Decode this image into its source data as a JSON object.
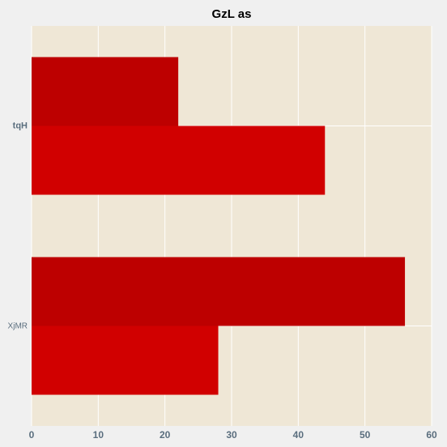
{
  "chart_data": {
    "type": "bar",
    "orientation": "horizontal",
    "title": "GzL as",
    "xlabel": "",
    "ylabel": "",
    "categories": [
      "XjMR",
      "tqH"
    ],
    "series": [
      {
        "values": [
          56,
          22
        ],
        "color": "#bd0000"
      },
      {
        "values": [
          28,
          44
        ],
        "color": "#d10000"
      }
    ],
    "xlim": [
      0,
      60
    ],
    "xticks": [
      0,
      10,
      20,
      30,
      40,
      50,
      60
    ],
    "grid": true,
    "legend": "none",
    "plot_background": "#efe7d6",
    "grid_color": "#ffffff"
  }
}
